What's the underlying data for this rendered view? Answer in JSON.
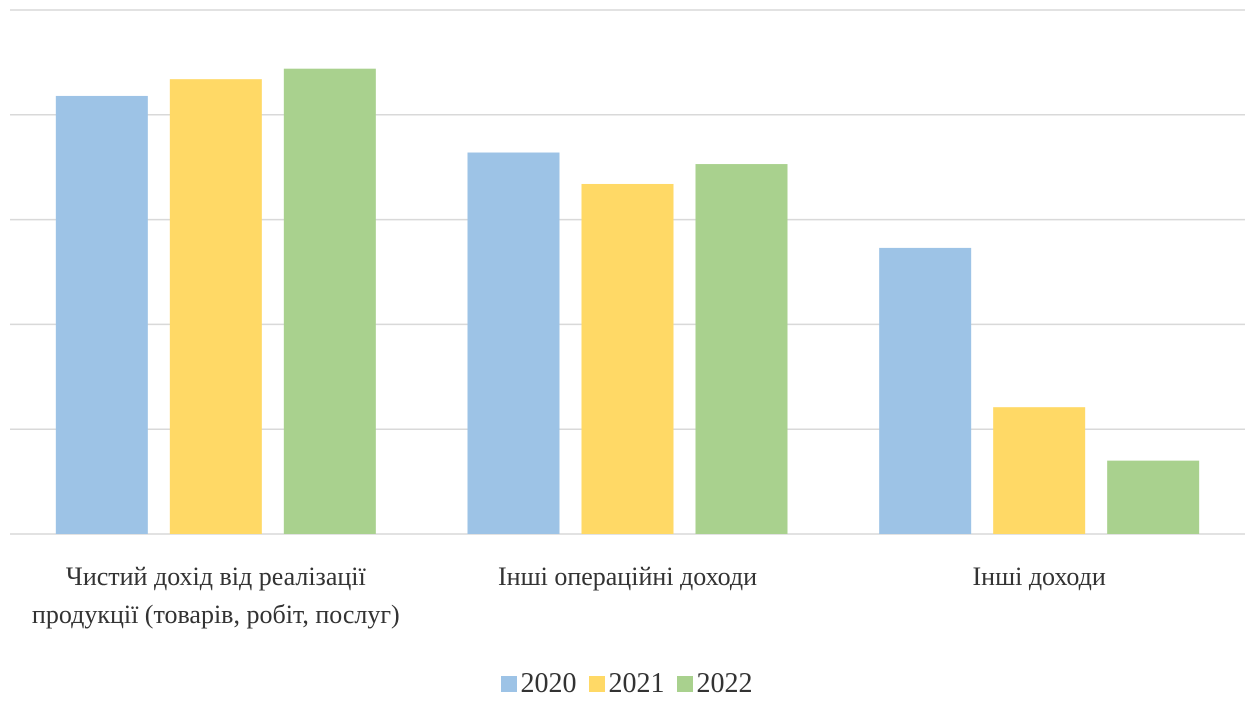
{
  "chart_data": {
    "type": "bar",
    "categories": [
      "Чистий дохід від реалізації продукції (товарів, робіт, послуг)",
      "Інші операційні доходи",
      "Інші доходи"
    ],
    "series": [
      {
        "name": "2020",
        "color": "#9dc3e6",
        "values": [
          4.18,
          3.64,
          2.73
        ]
      },
      {
        "name": "2021",
        "color": "#ffd966",
        "values": [
          4.34,
          3.34,
          1.21
        ]
      },
      {
        "name": "2022",
        "color": "#a9d18e",
        "values": [
          4.44,
          3.53,
          0.7
        ]
      }
    ],
    "ylim": [
      0,
      5
    ],
    "yticks": [
      0,
      1,
      2,
      3,
      4,
      5
    ],
    "grid": true,
    "legend": "bottom"
  }
}
